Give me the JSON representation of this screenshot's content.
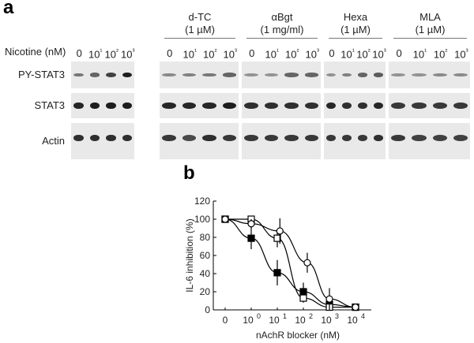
{
  "panel_a": {
    "label": "a",
    "x_row_label": "Nicotine (nM)",
    "lane_labels": [
      "0",
      "10¹",
      "10²",
      "10³"
    ],
    "groups": [
      {
        "name": "",
        "conc": ""
      },
      {
        "name": "d-TC",
        "conc": "(1 µM)"
      },
      {
        "name": "αBgt",
        "conc": "(1 mg/ml)"
      },
      {
        "name": "Hexa",
        "conc": "(1 µM)"
      },
      {
        "name": "MLA",
        "conc": "(1 µM)"
      }
    ],
    "rows": [
      {
        "label": "PY-STAT3",
        "intensity": [
          [
            0.45,
            0.55,
            0.75,
            0.95
          ],
          [
            0.35,
            0.4,
            0.45,
            0.55
          ],
          [
            0.3,
            0.3,
            0.55,
            0.55
          ],
          [
            0.3,
            0.4,
            0.55,
            0.6
          ],
          [
            0.3,
            0.3,
            0.35,
            0.35
          ]
        ]
      },
      {
        "label": "STAT3",
        "intensity": [
          [
            0.9,
            0.95,
            0.95,
            0.95
          ],
          [
            0.9,
            0.9,
            0.9,
            0.95
          ],
          [
            0.85,
            0.85,
            0.85,
            0.85
          ],
          [
            0.9,
            0.85,
            0.85,
            0.9
          ],
          [
            0.8,
            0.8,
            0.8,
            0.8
          ]
        ]
      },
      {
        "label": "Actin",
        "intensity": [
          [
            0.85,
            0.85,
            0.85,
            0.85
          ],
          [
            0.8,
            0.7,
            0.85,
            0.8
          ],
          [
            0.8,
            0.8,
            0.8,
            0.8
          ],
          [
            0.8,
            0.8,
            0.8,
            0.85
          ],
          [
            0.8,
            0.75,
            0.75,
            0.75
          ]
        ]
      }
    ]
  },
  "panel_b": {
    "label": "b"
  },
  "chart_data": {
    "type": "line",
    "title": "",
    "xlabel": "nAchR blocker (nM)",
    "ylabel": "IL-6 inhibition (%)",
    "x_tick_labels": [
      "0",
      "10",
      "10",
      "10",
      "10",
      "10"
    ],
    "x_tick_exponents": [
      "",
      "0",
      "1",
      "2",
      "3",
      "4"
    ],
    "x_log_positions": [
      -1,
      0,
      1,
      2,
      3,
      4
    ],
    "y_ticks": [
      0,
      20,
      40,
      60,
      80,
      100,
      120
    ],
    "ylim": [
      0,
      120
    ],
    "series": [
      {
        "name": "filled-square",
        "marker": "square-filled",
        "x": [
          -1,
          0,
          1,
          2,
          3,
          4
        ],
        "y": [
          100,
          79,
          41,
          20,
          6,
          3
        ],
        "err": [
          2,
          12,
          14,
          10,
          5,
          3
        ]
      },
      {
        "name": "open-square",
        "marker": "square-open",
        "x": [
          -1,
          0,
          1,
          2,
          3,
          4
        ],
        "y": [
          100,
          100,
          79,
          13,
          3,
          3
        ],
        "err": [
          2,
          3,
          10,
          5,
          2,
          3
        ]
      },
      {
        "name": "open-circle",
        "marker": "circle-open",
        "x": [
          -1,
          0,
          1.1,
          2.15,
          3,
          4
        ],
        "y": [
          100,
          95,
          87,
          52,
          12,
          3
        ],
        "err": [
          2,
          5,
          14,
          11,
          12,
          3
        ]
      }
    ]
  }
}
